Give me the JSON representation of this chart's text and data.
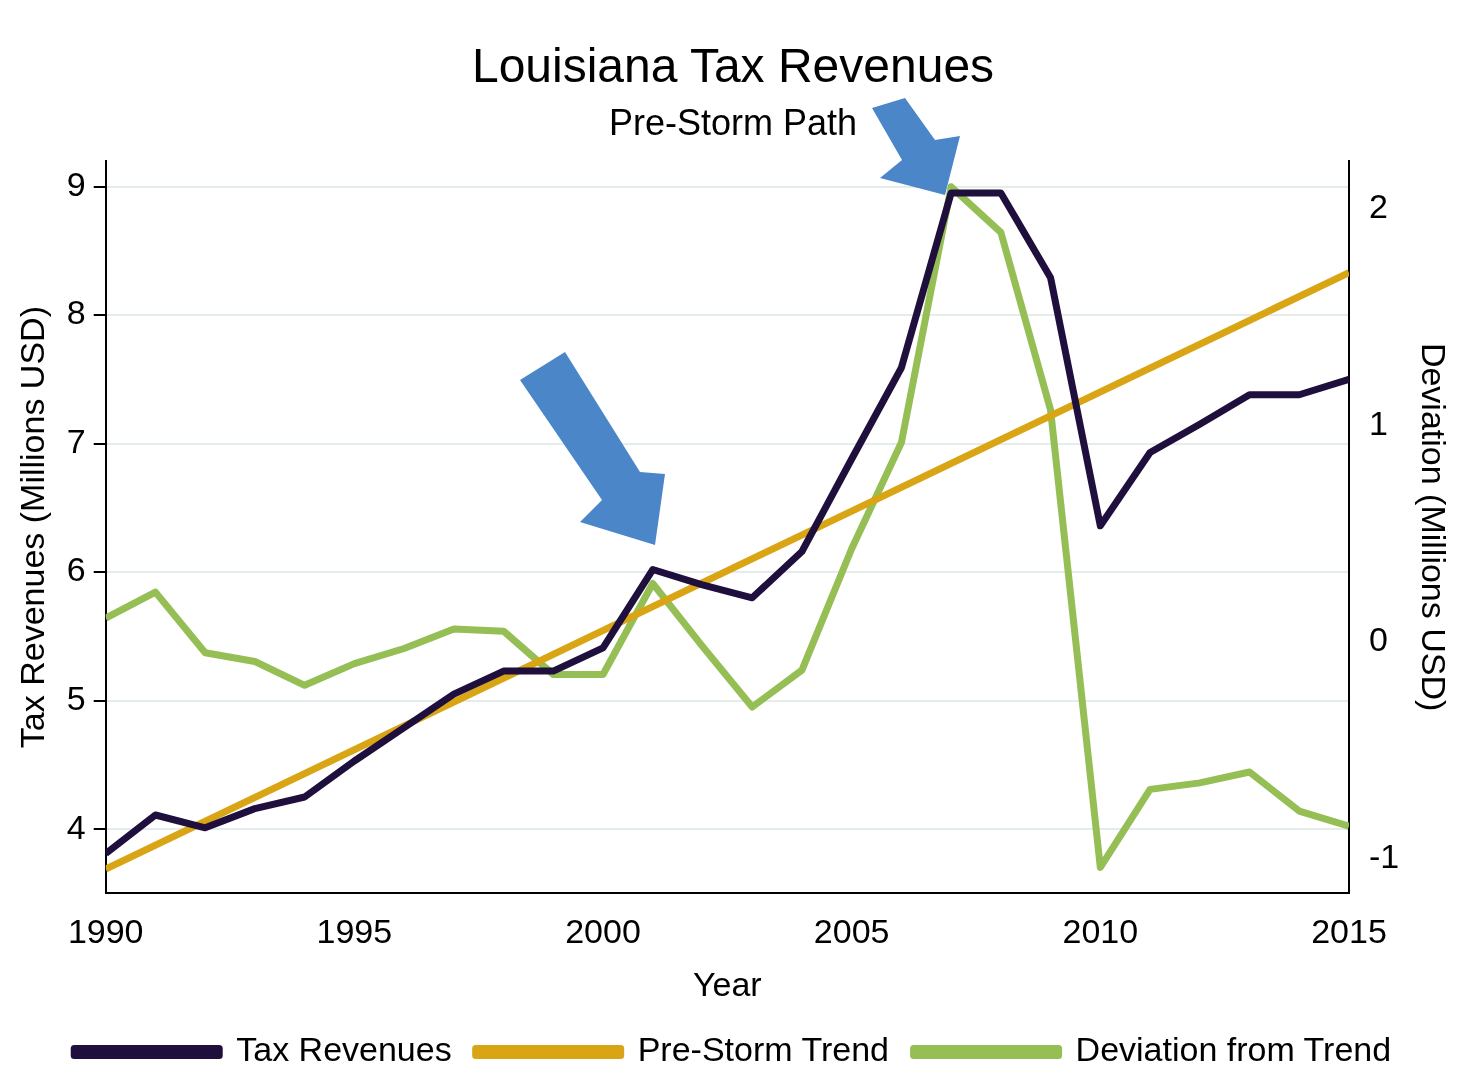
{
  "chart_data": {
    "type": "line",
    "title": "Louisiana Tax Revenues",
    "subtitle": "Pre-Storm Path",
    "xlabel": "Year",
    "ylabel": "Tax Revenues (Millions USD)",
    "y2label": "Deviation (Millions USD)",
    "x": [
      1990,
      1991,
      1992,
      1993,
      1994,
      1995,
      1996,
      1997,
      1998,
      1999,
      2000,
      2001,
      2002,
      2003,
      2004,
      2005,
      2006,
      2007,
      2008,
      2009,
      2010,
      2011,
      2012,
      2013,
      2014,
      2015
    ],
    "series": [
      {
        "name": "Tax Revenues",
        "color": "#1f0f3d",
        "values": [
          3.81,
          4.11,
          4.01,
          4.16,
          4.25,
          4.53,
          4.79,
          5.05,
          5.23,
          5.23,
          5.41,
          6.02,
          5.9,
          5.8,
          6.16,
          6.88,
          7.59,
          8.95,
          8.95,
          8.29,
          6.36,
          6.93,
          7.15,
          7.38,
          7.38,
          7.5
        ]
      },
      {
        "name": "Pre-Storm Trend",
        "color": "#d9a514",
        "x": [
          1990,
          2015
        ],
        "values": [
          3.69,
          8.33
        ]
      },
      {
        "name": "Deviation from Trend",
        "color": "#95be55",
        "axis": "y2",
        "values": [
          0.11,
          0.23,
          -0.05,
          -0.09,
          -0.2,
          -0.1,
          -0.03,
          0.06,
          0.05,
          -0.15,
          -0.15,
          0.27,
          -0.02,
          -0.3,
          -0.13,
          0.43,
          0.92,
          2.1,
          1.89,
          1.07,
          -1.04,
          -0.68,
          -0.65,
          -0.6,
          -0.78,
          -0.85
        ]
      }
    ],
    "xlim": [
      1990,
      2015
    ],
    "xticks": [
      1990,
      1995,
      2000,
      2005,
      2010,
      2015
    ],
    "ylim": [
      3.5,
      9.2
    ],
    "yticks": [
      4,
      5,
      6,
      7,
      8,
      9
    ],
    "y2lim": [
      -1.16,
      2.22
    ],
    "y2ticks": [
      -1,
      0,
      1,
      2
    ],
    "grid": "y",
    "legend": "bottom",
    "marker": "none",
    "line_style": "solid"
  }
}
